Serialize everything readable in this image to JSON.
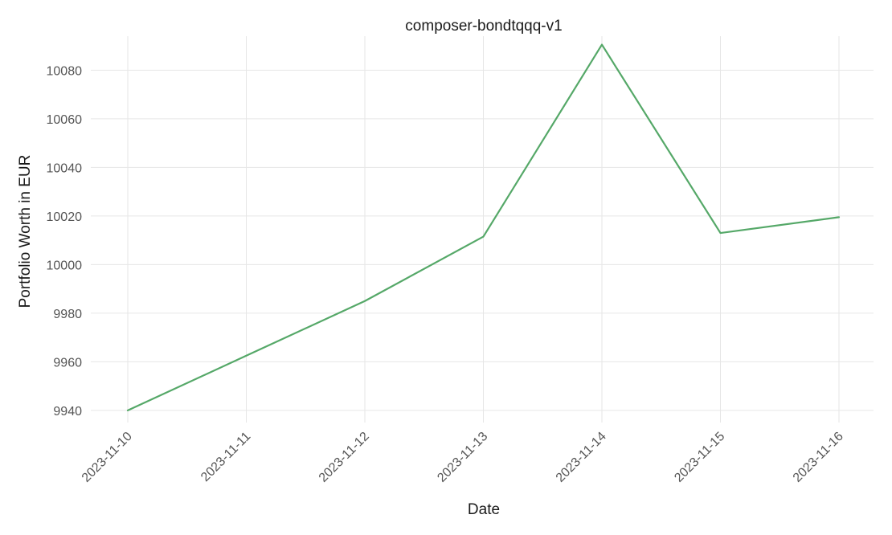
{
  "chart_data": {
    "type": "line",
    "title": "composer-bondtqqq-v1",
    "xlabel": "Date",
    "ylabel": "Portfolio Worth in EUR",
    "x": [
      "2023-11-10",
      "2023-11-11",
      "2023-11-12",
      "2023-11-13",
      "2023-11-14",
      "2023-11-15",
      "2023-11-16"
    ],
    "series": [
      {
        "values": [
          9940,
          9962.5,
          9985,
          10011.5,
          10090.5,
          10013,
          10019.5
        ],
        "color": "#55a868"
      }
    ],
    "yticks": [
      9940,
      9960,
      9980,
      10000,
      10020,
      10040,
      10060,
      10080
    ],
    "ylim": [
      9935,
      10094
    ],
    "grid": true,
    "legend": "none"
  }
}
